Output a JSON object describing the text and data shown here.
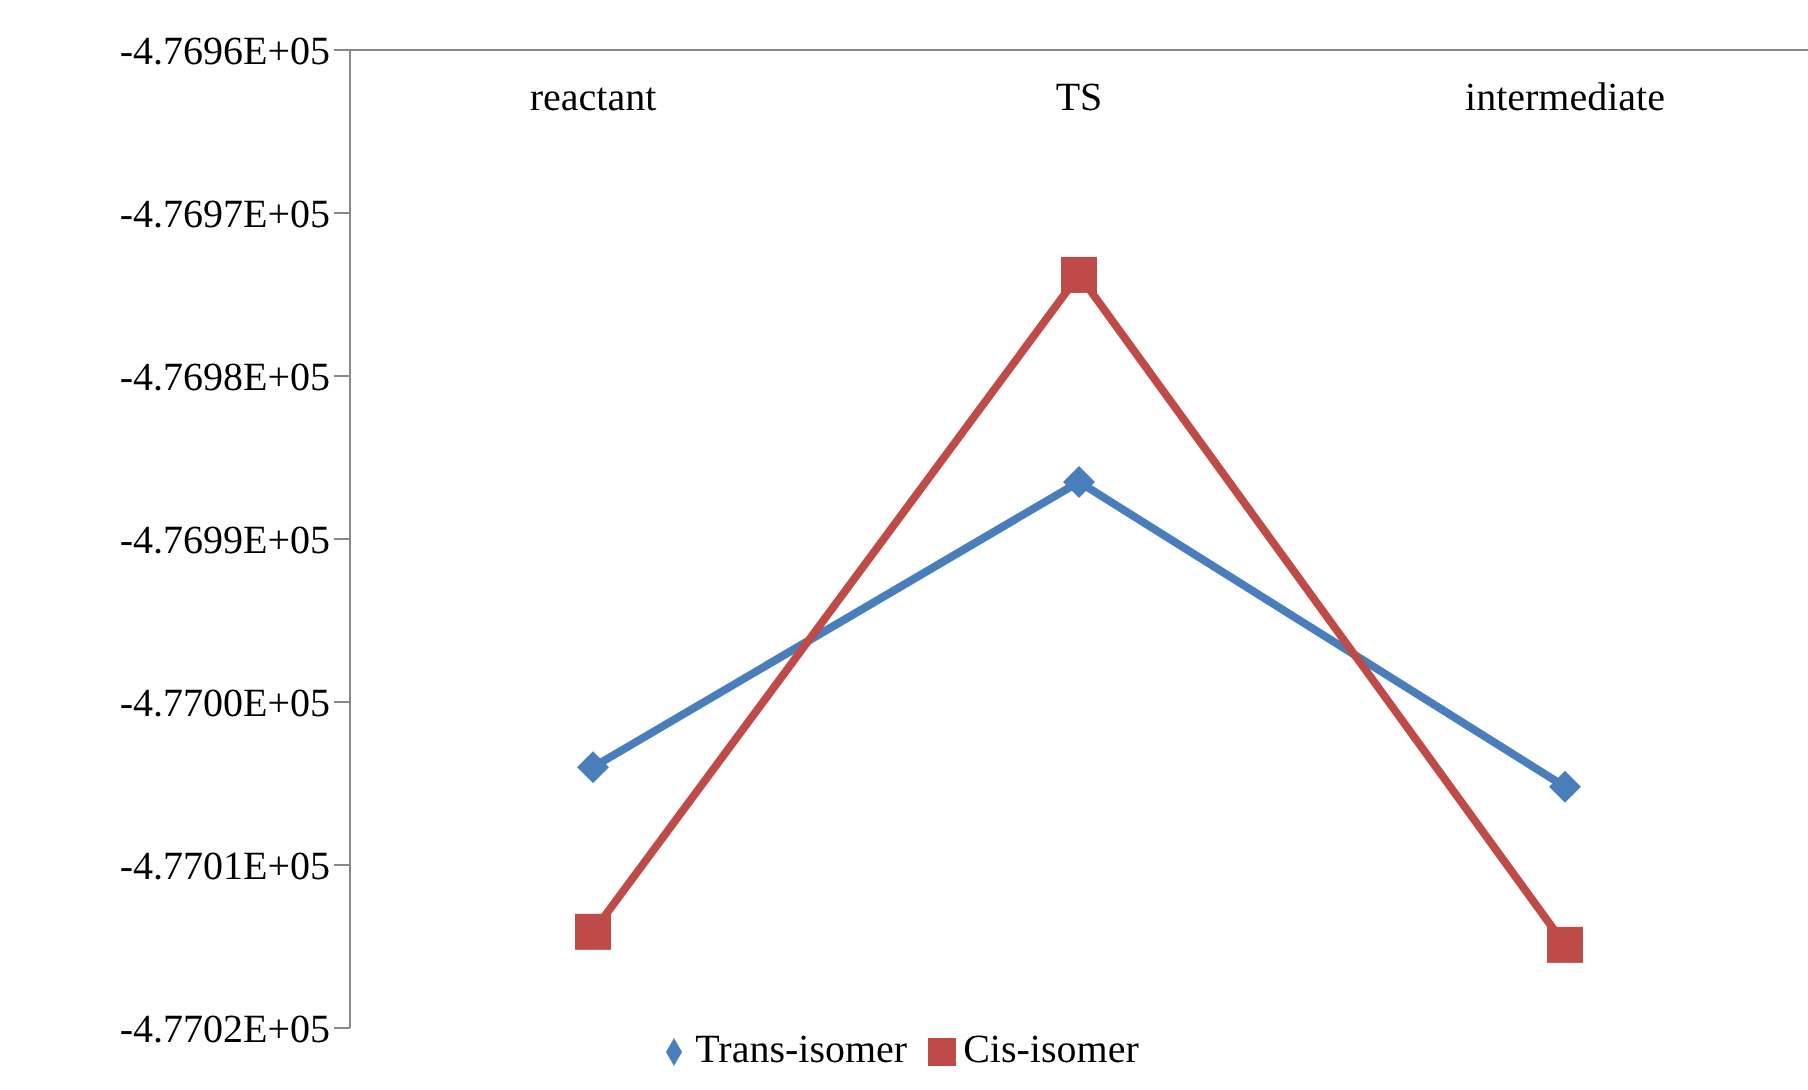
{
  "chart_data": {
    "type": "line",
    "categories": [
      "reactant",
      "TS",
      "intermediate"
    ],
    "series": [
      {
        "name": "Trans-isomer",
        "color": "#4a7ebb",
        "marker": "diamond",
        "values": [
          -477004,
          -476986.5,
          -477005.2
        ]
      },
      {
        "name": "Cis-isomer",
        "color": "#be4b48",
        "marker": "square",
        "values": [
          -477014.1,
          -476973.8,
          -477014.9
        ]
      }
    ],
    "ylim": [
      -477020,
      -476960
    ],
    "yticks": [
      {
        "value": -476960,
        "label": "-4.7696E+05"
      },
      {
        "value": -476970,
        "label": "-4.7697E+05"
      },
      {
        "value": -476980,
        "label": "-4.7698E+05"
      },
      {
        "value": -476990,
        "label": "-4.7699E+05"
      },
      {
        "value": -477000,
        "label": "-4.7700E+05"
      },
      {
        "value": -477010,
        "label": "-4.7701E+05"
      },
      {
        "value": -477020,
        "label": "-4.7702E+05"
      }
    ],
    "grid": false,
    "legend": "bottom",
    "line_style": "solid"
  }
}
